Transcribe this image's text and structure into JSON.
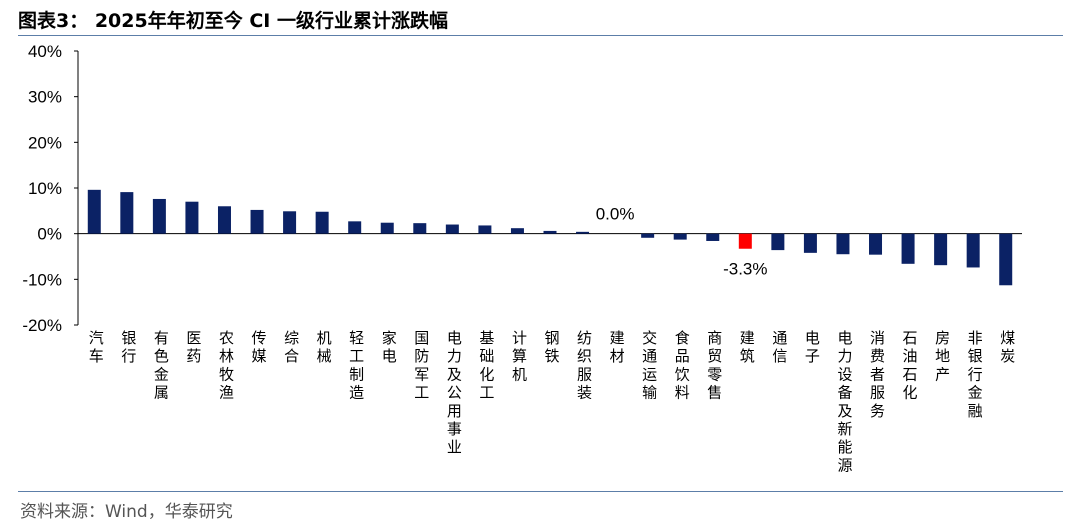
{
  "title": "图表3：  2025年年初至今 CI 一级行业累计涨跌幅",
  "source": "资料来源：Wind，华泰研究",
  "colors": {
    "bar": "#0b2265",
    "highlight": "#ff0000",
    "axis": "#000000",
    "rule": "#5c7ea8"
  },
  "chart_data": {
    "type": "bar",
    "title": "2025年年初至今 CI 一级行业累计涨跌幅",
    "xlabel": "",
    "ylabel": "",
    "ylim": [
      -20,
      40
    ],
    "yticks": [
      "40%",
      "30%",
      "20%",
      "10%",
      "0%",
      "-10%",
      "-20%"
    ],
    "ytick_values": [
      40,
      30,
      20,
      10,
      0,
      -10,
      -20
    ],
    "grid": false,
    "categories": [
      "汽车",
      "银行",
      "有色金属",
      "医药",
      "农林牧渔",
      "传媒",
      "综合",
      "机械",
      "轻工制造",
      "家电",
      "国防军工",
      "电力及公用事业",
      "基础化工",
      "计算机",
      "钢铁",
      "纺织服装",
      "建材",
      "交通运输",
      "食品饮料",
      "商贸零售",
      "建筑",
      "通信",
      "电子",
      "电力设备及新能源",
      "消费者服务",
      "石油石化",
      "房地产",
      "非银行金融",
      "煤炭"
    ],
    "values": [
      9.6,
      9.1,
      7.6,
      7.0,
      6.0,
      5.2,
      4.9,
      4.8,
      2.7,
      2.4,
      2.3,
      2.0,
      1.8,
      1.2,
      0.6,
      0.4,
      0.0,
      -0.9,
      -1.3,
      -1.6,
      -3.3,
      -3.6,
      -4.2,
      -4.5,
      -4.6,
      -6.6,
      -6.9,
      -7.4,
      -11.3
    ],
    "highlight_index": 20,
    "data_labels": [
      {
        "index": 16,
        "text": "0.0%"
      },
      {
        "index": 20,
        "text": "-3.3%"
      }
    ]
  }
}
